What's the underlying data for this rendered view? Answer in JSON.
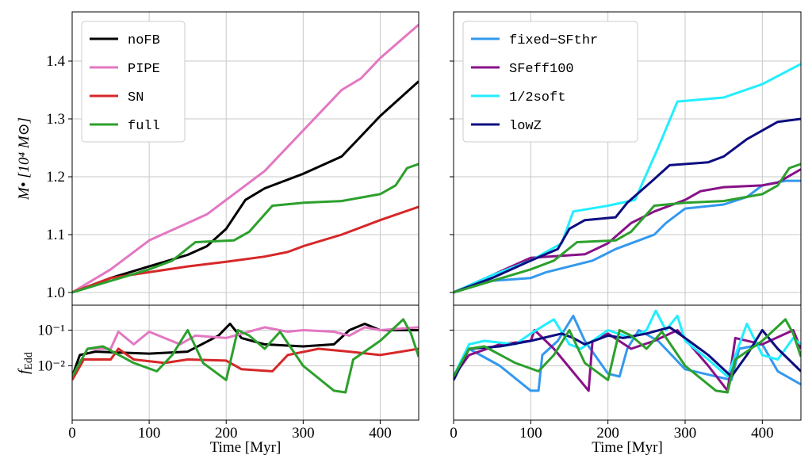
{
  "chart_data": [
    {
      "type": "line",
      "ylabel": "M• [10⁴ M⊙]",
      "xlim": [
        0,
        450
      ],
      "xticks": [
        0,
        100,
        200,
        300,
        400
      ],
      "ylim": [
        0.978,
        1.485
      ],
      "yticks": [
        {
          "value": 1,
          "label": "1.0"
        },
        1.1,
        1.2,
        1.3,
        1.4
      ],
      "grid": true,
      "legend": "upper left",
      "series": [
        {
          "name": "noFB",
          "color": "#000000",
          "x": [
            0,
            50,
            100,
            150,
            175,
            200,
            225,
            250,
            300,
            350,
            375,
            400,
            450
          ],
          "values": [
            1.0,
            1.025,
            1.045,
            1.065,
            1.08,
            1.11,
            1.16,
            1.18,
            1.205,
            1.235,
            1.27,
            1.305,
            1.365
          ]
        },
        {
          "name": "PIPE",
          "color": "#e377c2",
          "x": [
            0,
            50,
            100,
            150,
            175,
            200,
            250,
            300,
            350,
            375,
            400,
            450
          ],
          "values": [
            1.0,
            1.04,
            1.09,
            1.12,
            1.135,
            1.16,
            1.21,
            1.28,
            1.35,
            1.37,
            1.405,
            1.463
          ]
        },
        {
          "name": "SN",
          "color": "#d62728",
          "x": [
            0,
            50,
            100,
            150,
            200,
            250,
            280,
            300,
            350,
            400,
            450
          ],
          "values": [
            1.0,
            1.025,
            1.035,
            1.045,
            1.053,
            1.062,
            1.07,
            1.08,
            1.1,
            1.125,
            1.148
          ]
        },
        {
          "name": "full",
          "color": "#2ca02c",
          "x": [
            0,
            50,
            100,
            130,
            160,
            210,
            230,
            260,
            300,
            350,
            400,
            420,
            435,
            450
          ],
          "values": [
            1.0,
            1.02,
            1.04,
            1.055,
            1.087,
            1.09,
            1.105,
            1.15,
            1.155,
            1.158,
            1.17,
            1.185,
            1.215,
            1.222
          ]
        }
      ]
    },
    {
      "type": "line",
      "ylabel": "f",
      "ylabel_sub": "Edd",
      "xlabel": "Time [Myr]",
      "xlim": [
        0,
        450
      ],
      "xticks": [
        0,
        100,
        200,
        300,
        400
      ],
      "ylim": [
        0.0003,
        0.5
      ],
      "log_y": true,
      "yticks": [
        {
          "value": 0.01,
          "label": "10⁻²"
        },
        {
          "value": 0.1,
          "label": "10⁻¹"
        }
      ],
      "grid": true,
      "series": [
        {
          "color": "#000000",
          "x": [
            0,
            10,
            30,
            100,
            150,
            190,
            205,
            220,
            250,
            300,
            340,
            360,
            380,
            400,
            450
          ],
          "values": [
            0.005,
            0.02,
            0.025,
            0.022,
            0.025,
            0.07,
            0.15,
            0.06,
            0.04,
            0.035,
            0.04,
            0.1,
            0.15,
            0.1,
            0.1
          ]
        },
        {
          "color": "#e377c2",
          "x": [
            0,
            20,
            50,
            60,
            80,
            100,
            120,
            140,
            160,
            200,
            250,
            280,
            300,
            340,
            360,
            380,
            400,
            450
          ],
          "values": [
            0.005,
            0.03,
            0.03,
            0.09,
            0.04,
            0.09,
            0.06,
            0.04,
            0.07,
            0.06,
            0.12,
            0.09,
            0.1,
            0.09,
            0.07,
            0.12,
            0.1,
            0.12
          ]
        },
        {
          "color": "#d62728",
          "x": [
            0,
            15,
            50,
            60,
            80,
            120,
            150,
            200,
            220,
            260,
            280,
            320,
            360,
            400,
            450
          ],
          "values": [
            0.004,
            0.015,
            0.015,
            0.03,
            0.015,
            0.012,
            0.015,
            0.014,
            0.008,
            0.007,
            0.02,
            0.03,
            0.025,
            0.02,
            0.03
          ]
        },
        {
          "color": "#2ca02c",
          "x": [
            0,
            20,
            40,
            80,
            110,
            130,
            150,
            170,
            200,
            215,
            230,
            250,
            270,
            300,
            340,
            355,
            365,
            400,
            430,
            440,
            450
          ],
          "values": [
            0.005,
            0.03,
            0.035,
            0.012,
            0.007,
            0.02,
            0.1,
            0.012,
            0.004,
            0.1,
            0.07,
            0.03,
            0.09,
            0.01,
            0.002,
            0.0018,
            0.015,
            0.05,
            0.2,
            0.08,
            0.018
          ]
        }
      ]
    },
    {
      "type": "line",
      "xlim": [
        0,
        450
      ],
      "xticks": [
        0,
        100,
        200,
        300,
        400
      ],
      "ylim": [
        0.978,
        1.485
      ],
      "yticks": [
        1,
        1.1,
        1.2,
        1.3,
        1.4
      ],
      "ytick_labels": false,
      "grid": true,
      "legend": "upper left",
      "series": [
        {
          "name": "fixed−SFthr",
          "color": "#3399ee",
          "x": [
            0,
            50,
            100,
            120,
            180,
            210,
            240,
            260,
            275,
            300,
            350,
            380,
            400,
            430,
            450
          ],
          "values": [
            1.0,
            1.02,
            1.025,
            1.035,
            1.055,
            1.075,
            1.09,
            1.1,
            1.12,
            1.145,
            1.152,
            1.165,
            1.185,
            1.193,
            1.193
          ]
        },
        {
          "name": "SFeff100",
          "color": "#881188",
          "x": [
            0,
            50,
            100,
            170,
            200,
            230,
            260,
            300,
            320,
            350,
            400,
            420,
            450
          ],
          "values": [
            1.0,
            1.03,
            1.06,
            1.066,
            1.085,
            1.12,
            1.14,
            1.16,
            1.175,
            1.182,
            1.185,
            1.19,
            1.213
          ]
        },
        {
          "name": "1/2soft",
          "color": "#22eeff",
          "x": [
            0,
            50,
            100,
            140,
            155,
            200,
            235,
            265,
            290,
            350,
            400,
            450
          ],
          "values": [
            1.0,
            1.03,
            1.055,
            1.085,
            1.14,
            1.15,
            1.16,
            1.25,
            1.33,
            1.337,
            1.36,
            1.395
          ]
        },
        {
          "name": "lowZ",
          "color": "#0d0d80",
          "x": [
            0,
            50,
            100,
            135,
            150,
            170,
            210,
            225,
            255,
            280,
            330,
            350,
            380,
            420,
            450
          ],
          "values": [
            1.0,
            1.025,
            1.055,
            1.075,
            1.11,
            1.125,
            1.13,
            1.155,
            1.19,
            1.22,
            1.225,
            1.235,
            1.265,
            1.295,
            1.3
          ]
        },
        {
          "color": "#2ca02c",
          "x": [
            0,
            50,
            100,
            130,
            160,
            210,
            230,
            260,
            300,
            350,
            400,
            420,
            435,
            450
          ],
          "values": [
            1.0,
            1.02,
            1.04,
            1.055,
            1.087,
            1.09,
            1.105,
            1.15,
            1.155,
            1.158,
            1.17,
            1.185,
            1.215,
            1.222
          ]
        }
      ]
    },
    {
      "type": "line",
      "xlabel": "Time [Myr]",
      "xlim": [
        0,
        450
      ],
      "xticks": [
        0,
        100,
        200,
        300,
        400
      ],
      "ylim": [
        0.0003,
        0.5
      ],
      "log_y": true,
      "yticks": [
        0.01,
        0.1
      ],
      "ytick_labels": false,
      "grid": true,
      "series": [
        {
          "color": "#3399ee",
          "x": [
            0,
            20,
            60,
            100,
            110,
            115,
            135,
            155,
            170,
            200,
            215,
            225,
            240,
            265,
            300,
            360,
            370,
            400,
            420,
            450
          ],
          "values": [
            0.004,
            0.03,
            0.01,
            0.002,
            0.002,
            0.02,
            0.05,
            0.25,
            0.05,
            0.006,
            0.005,
            0.03,
            0.1,
            0.05,
            0.008,
            0.004,
            0.03,
            0.04,
            0.007,
            0.003
          ]
        },
        {
          "color": "#881188",
          "x": [
            0,
            20,
            60,
            100,
            105,
            130,
            175,
            180,
            200,
            230,
            260,
            290,
            330,
            355,
            365,
            400,
            440,
            450
          ],
          "values": [
            0.005,
            0.02,
            0.04,
            0.05,
            0.1,
            0.03,
            0.002,
            0.05,
            0.08,
            0.03,
            0.05,
            0.1,
            0.01,
            0.002,
            0.06,
            0.04,
            0.1,
            0.03
          ]
        },
        {
          "color": "#22eeff",
          "x": [
            0,
            20,
            40,
            80,
            100,
            130,
            150,
            165,
            200,
            230,
            250,
            262,
            275,
            290,
            300,
            330,
            355,
            380,
            400,
            420,
            440,
            450
          ],
          "values": [
            0.005,
            0.04,
            0.05,
            0.04,
            0.08,
            0.2,
            0.04,
            0.03,
            0.1,
            0.06,
            0.1,
            0.35,
            0.1,
            0.25,
            0.05,
            0.015,
            0.005,
            0.15,
            0.02,
            0.015,
            0.06,
            0.04
          ]
        },
        {
          "color": "#0d0d80",
          "x": [
            0,
            20,
            60,
            100,
            140,
            155,
            170,
            200,
            220,
            250,
            280,
            300,
            330,
            360,
            380,
            400,
            420,
            450
          ],
          "values": [
            0.004,
            0.03,
            0.035,
            0.05,
            0.08,
            0.06,
            0.04,
            0.07,
            0.06,
            0.08,
            0.12,
            0.06,
            0.02,
            0.005,
            0.02,
            0.1,
            0.03,
            0.007
          ]
        },
        {
          "color": "#2ca02c",
          "x": [
            0,
            20,
            40,
            80,
            110,
            130,
            150,
            170,
            200,
            215,
            230,
            250,
            270,
            300,
            340,
            355,
            365,
            400,
            430,
            440,
            450
          ],
          "values": [
            0.005,
            0.03,
            0.035,
            0.012,
            0.007,
            0.02,
            0.1,
            0.012,
            0.004,
            0.1,
            0.07,
            0.03,
            0.09,
            0.01,
            0.002,
            0.0018,
            0.015,
            0.05,
            0.2,
            0.08,
            0.018
          ]
        }
      ]
    }
  ]
}
